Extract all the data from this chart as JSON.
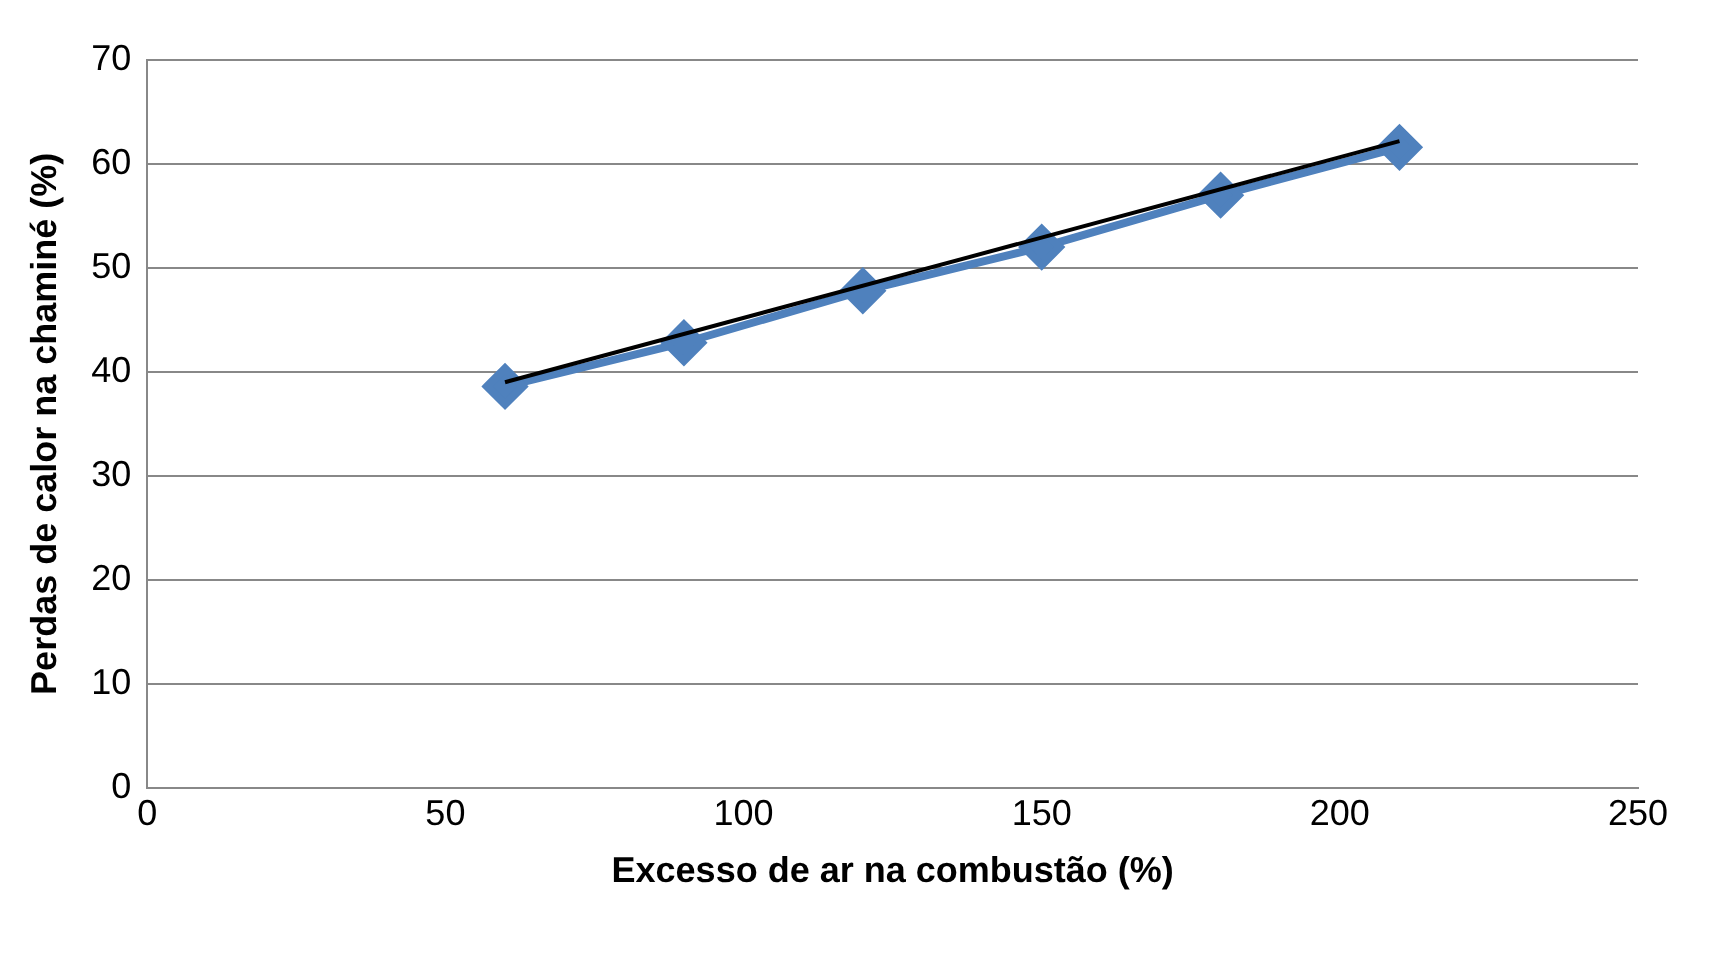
{
  "chart_data": {
    "type": "line",
    "xlabel": "Excesso de ar na combustão (%)",
    "ylabel": "Perdas de calor na chaminé (%)",
    "x": [
      60,
      90,
      120,
      150,
      180,
      210
    ],
    "series": [
      {
        "color": "#4f81bd",
        "values": [
          38.6,
          42.8,
          47.8,
          52.0,
          57.0,
          61.6
        ],
        "marker": "diamond"
      },
      {
        "type": "line",
        "color": "#000000",
        "x": [
          60,
          210
        ],
        "values": [
          39.0,
          62.2
        ],
        "marker": "none"
      }
    ],
    "xlim": [
      0,
      250
    ],
    "xticks": [
      0,
      50,
      100,
      150,
      200,
      250
    ],
    "ylim": [
      0,
      70
    ],
    "yticks": [
      0,
      10,
      20,
      30,
      40,
      50,
      60,
      70
    ],
    "grid": "y",
    "legend": false
  }
}
